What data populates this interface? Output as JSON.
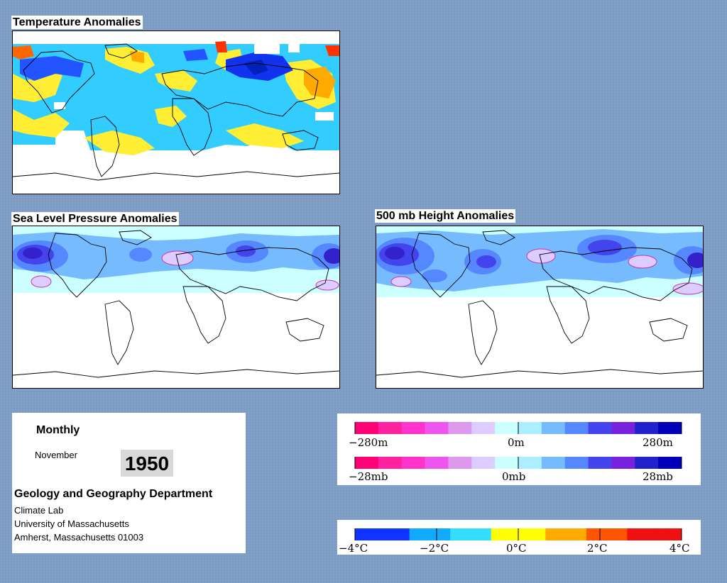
{
  "panels": {
    "temperature_title": "Temperature Anomalies",
    "slp_title": "Sea Level Pressure Anomalies",
    "height_title": "500 mb Height Anomalies"
  },
  "info": {
    "period": "Monthly",
    "month": "November",
    "year": "1950",
    "department": "Geology and Geography Department",
    "lab": "Climate Lab",
    "university": "University of Massachusetts",
    "address": "Amherst, Massachusetts 01003"
  },
  "legends": {
    "height": {
      "min": "−280m",
      "mid": "0m",
      "max": "280m"
    },
    "pressure": {
      "min": "−28mb",
      "mid": "0mb",
      "max": "28mb"
    },
    "temperature": {
      "labels": [
        "−4°C",
        "−2°C",
        "0°C",
        "2°C",
        "4°C"
      ]
    }
  },
  "colors": {
    "background": "#7d9cc4",
    "diverging_scale": [
      "#ff0077",
      "#ff22a0",
      "#ff33cc",
      "#ee55ee",
      "#dd99ee",
      "#ddccff",
      "#ccffff",
      "#aaeeff",
      "#77bbff",
      "#5588ff",
      "#4444ee",
      "#7722dd",
      "#2222cc",
      "#0000bb"
    ],
    "temperature_scale": [
      "#1133ff",
      "#11aaff",
      "#33ddff",
      "#ffff00",
      "#ffaa00",
      "#ff5500",
      "#ee1111"
    ]
  }
}
